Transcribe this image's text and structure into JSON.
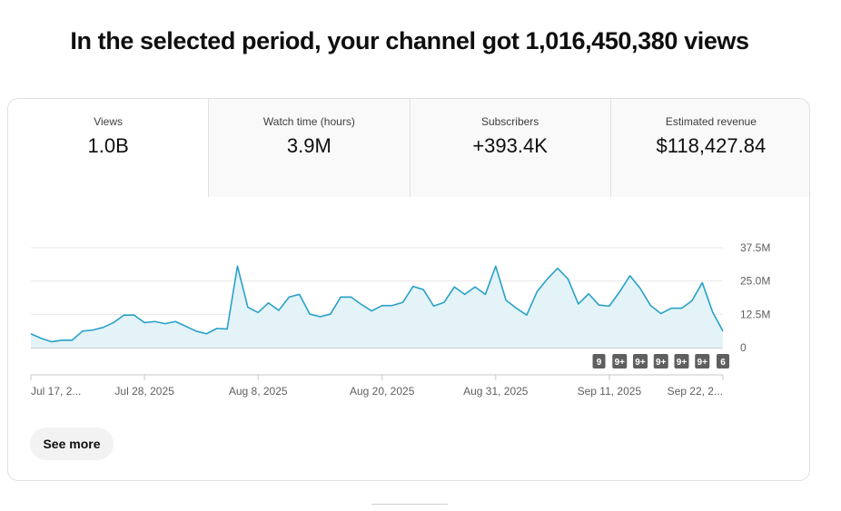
{
  "headline": "In the selected period, your channel got 1,016,450,380 views",
  "tabs": [
    {
      "label": "Views",
      "value": "1.0B",
      "active": true
    },
    {
      "label": "Watch time (hours)",
      "value": "3.9M",
      "active": false
    },
    {
      "label": "Subscribers",
      "value": "+393.4K",
      "active": false
    },
    {
      "label": "Estimated revenue",
      "value": "$118,427.84",
      "active": false
    }
  ],
  "chart_data": {
    "type": "area",
    "ylim": [
      0,
      37500000
    ],
    "y_ticks": [
      {
        "value": 37500000,
        "label": "37.5M"
      },
      {
        "value": 25000000,
        "label": "25.0M"
      },
      {
        "value": 12500000,
        "label": "12.5M"
      },
      {
        "value": 0,
        "label": "0"
      }
    ],
    "x_labels": [
      {
        "label": "Jul 17, 2...",
        "index": 0
      },
      {
        "label": "Jul 28, 2025",
        "index": 11
      },
      {
        "label": "Aug 8, 2025",
        "index": 22
      },
      {
        "label": "Aug 20, 2025",
        "index": 34
      },
      {
        "label": "Aug 31, 2025",
        "index": 45
      },
      {
        "label": "Sep 11, 2025",
        "index": 56
      },
      {
        "label": "Sep 22, 2...",
        "index": 67
      }
    ],
    "values": [
      5.2,
      3.5,
      2.2,
      2.8,
      2.8,
      6.2,
      6.6,
      7.6,
      9.4,
      12.2,
      12.2,
      9.4,
      9.8,
      9.0,
      9.8,
      8.0,
      6.2,
      5.2,
      7.2,
      7.0,
      30.6,
      15.2,
      13.2,
      16.8,
      14.0,
      19.0,
      20.0,
      12.6,
      11.6,
      12.6,
      19.0,
      19.0,
      16.2,
      13.8,
      15.8,
      15.8,
      17.0,
      23.0,
      21.8,
      15.6,
      17.0,
      22.8,
      20.0,
      22.8,
      20.0,
      30.6,
      17.8,
      14.8,
      12.2,
      21.0,
      25.8,
      29.8,
      25.8,
      16.4,
      20.2,
      16.0,
      15.6,
      21.0,
      27.0,
      22.2,
      15.8,
      12.8,
      14.8,
      14.8,
      17.6,
      24.4,
      13.4,
      6.2
    ],
    "value_unit": "millions of views",
    "line_color": "#29a1c8",
    "fill_color": "#e3f3f8",
    "badges": [
      {
        "label": "9",
        "index": 55
      },
      {
        "label": "9+",
        "index": 57
      },
      {
        "label": "9+",
        "index": 59
      },
      {
        "label": "9+",
        "index": 61
      },
      {
        "label": "9+",
        "index": 63
      },
      {
        "label": "9+",
        "index": 65
      },
      {
        "label": "6",
        "index": 67
      }
    ]
  },
  "see_more_label": "See more"
}
